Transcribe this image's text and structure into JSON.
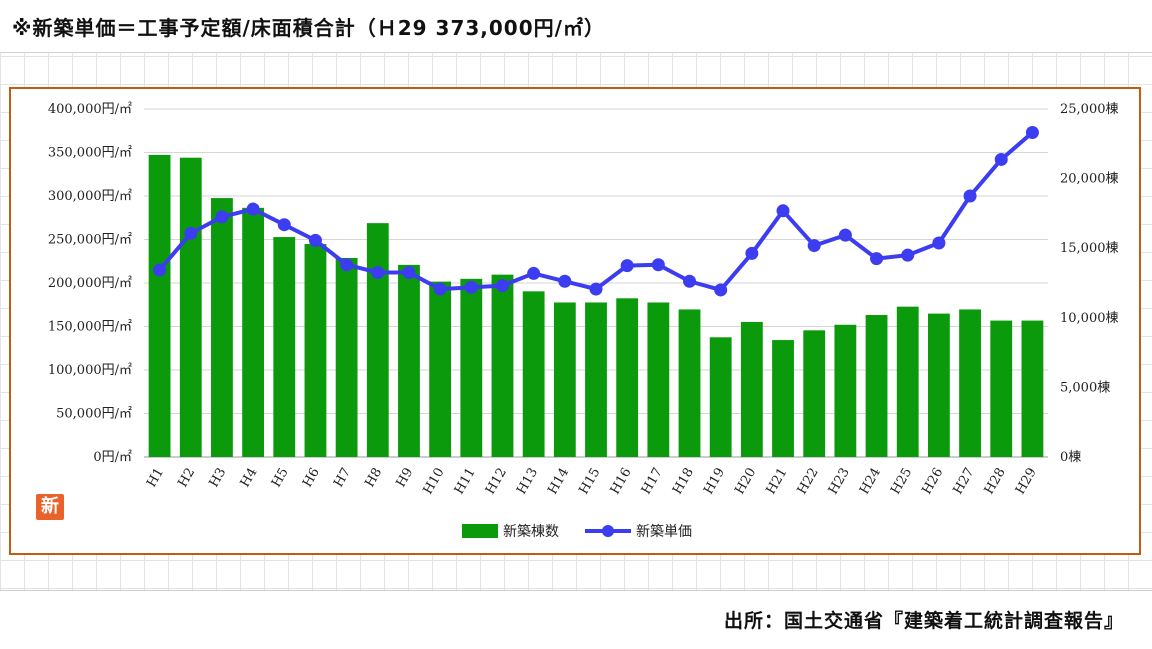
{
  "header": {
    "title": "※新築単価＝工事予定額/床面積合計（Ｈ29 373,000円/㎡）"
  },
  "footer": {
    "source": "出所：国土交通省『建築着工統計調査報告』"
  },
  "badge": {
    "text": "新"
  },
  "colors": {
    "bar": "#0b9a0b",
    "line": "#3c3cf0",
    "frame": "#c55a11"
  },
  "chart_data": {
    "type": "bar",
    "categories": [
      "H1",
      "H2",
      "H3",
      "H4",
      "H5",
      "H6",
      "H7",
      "H8",
      "H9",
      "H10",
      "H11",
      "H12",
      "H13",
      "H14",
      "H15",
      "H16",
      "H17",
      "H18",
      "H19",
      "H20",
      "H21",
      "H22",
      "H23",
      "H24",
      "H25",
      "H26",
      "H27",
      "H28",
      "H29"
    ],
    "series": [
      {
        "name": "新築棟数",
        "type": "bar",
        "axis": "right",
        "values": [
          21700,
          21500,
          18600,
          17900,
          15800,
          15300,
          14300,
          16800,
          13800,
          12600,
          12800,
          13100,
          11900,
          11100,
          11100,
          11400,
          11100,
          10600,
          8600,
          9700,
          8400,
          9100,
          9500,
          10200,
          10800,
          10300,
          10600,
          9800,
          9800
        ]
      },
      {
        "name": "新築単価",
        "type": "line",
        "axis": "left",
        "values": [
          215000,
          257000,
          276000,
          285000,
          267000,
          249000,
          221000,
          212000,
          212000,
          193000,
          195000,
          197000,
          211000,
          202000,
          193000,
          220000,
          221000,
          202000,
          192000,
          234000,
          283000,
          243000,
          255000,
          228000,
          232000,
          246000,
          300000,
          342000,
          373000
        ]
      }
    ],
    "left_axis": {
      "min": 0,
      "max": 400000,
      "step": 50000,
      "tick_labels": [
        "0円/㎡",
        "50,000円/㎡",
        "100,000円/㎡",
        "150,000円/㎡",
        "200,000円/㎡",
        "250,000円/㎡",
        "300,000円/㎡",
        "350,000円/㎡",
        "400,000円/㎡"
      ]
    },
    "right_axis": {
      "min": 0,
      "max": 25000,
      "step": 5000,
      "tick_labels": [
        "0棟",
        "5,000棟",
        "10,000棟",
        "15,000棟",
        "20,000棟",
        "25,000棟"
      ]
    },
    "grid": true,
    "legend": {
      "position": "bottom",
      "items": [
        "新築棟数",
        "新築単価"
      ]
    }
  }
}
